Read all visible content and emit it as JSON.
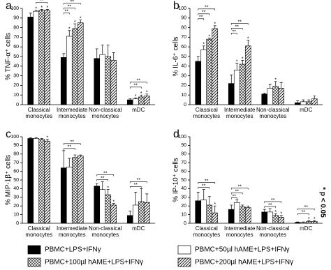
{
  "legend": [
    {
      "name": "PBMC+LPS+IFNγ",
      "pattern": "solid"
    },
    {
      "name": "PBMC+50µl hAME+LPS+IFNγ",
      "pattern": "white"
    },
    {
      "name": "PBMC+100µl hAME+LPS+IFNγ",
      "pattern": "cross"
    },
    {
      "name": "PBMC+200µl hAME+LPS+IFNγ",
      "pattern": "diag"
    }
  ],
  "note": "* p < 0.05",
  "chart_data": [
    {
      "type": "bar",
      "panel": "a",
      "y_label": "% TNF-α⁺ cells",
      "categories": [
        "Classical monocytes",
        "Intermediate monocytes",
        "Non-classical monocytes",
        "mDC"
      ],
      "ylim": [
        0,
        100
      ],
      "yticks": [
        0,
        10,
        20,
        30,
        40,
        50,
        60,
        70,
        80,
        90,
        100
      ],
      "series": [
        {
          "pattern": "solid",
          "values": [
            91,
            49,
            48,
            5
          ],
          "errors": [
            4,
            4,
            10,
            1
          ],
          "stars": [
            null,
            null,
            null,
            null
          ]
        },
        {
          "pattern": "white",
          "values": [
            97,
            71,
            52,
            6
          ],
          "errors": [
            1,
            6,
            10,
            1
          ],
          "stars": [
            "*",
            "*",
            null,
            "*"
          ]
        },
        {
          "pattern": "cross",
          "values": [
            98,
            79,
            50,
            8
          ],
          "errors": [
            1,
            5,
            12,
            2
          ],
          "stars": [
            "*",
            "*",
            null,
            "*"
          ]
        },
        {
          "pattern": "diag",
          "values": [
            98,
            85,
            46,
            9
          ],
          "errors": [
            1,
            3,
            8,
            2
          ],
          "stars": [
            "*",
            "*",
            null,
            "*"
          ]
        }
      ],
      "brackets": [
        {
          "category": 0,
          "from": 1,
          "to": 3,
          "label": "**"
        },
        {
          "category": 1,
          "from": 0,
          "to": 1,
          "label": "**"
        },
        {
          "category": 1,
          "from": 0,
          "to": 2,
          "label": "**"
        },
        {
          "category": 1,
          "from": 0,
          "to": 3,
          "label": "**"
        },
        {
          "category": 3,
          "from": 0,
          "to": 2,
          "label": "**"
        },
        {
          "category": 3,
          "from": 0,
          "to": 3,
          "label": "**"
        }
      ]
    },
    {
      "type": "bar",
      "panel": "b",
      "y_label": "% IL-6⁺ cells",
      "categories": [
        "Classical monocytes",
        "Intermediate monocytes",
        "Non-classical monocytes",
        "mDC"
      ],
      "ylim": [
        0,
        100
      ],
      "yticks": [
        0,
        10,
        20,
        30,
        40,
        50,
        60,
        70,
        80,
        90,
        100
      ],
      "series": [
        {
          "pattern": "solid",
          "values": [
            45,
            22,
            11,
            2
          ],
          "errors": [
            5,
            9,
            1,
            2
          ],
          "stars": [
            null,
            null,
            null,
            null
          ]
        },
        {
          "pattern": "white",
          "values": [
            57,
            36,
            17,
            3
          ],
          "errors": [
            4,
            7,
            4,
            2
          ],
          "stars": [
            "*",
            "*",
            null,
            null
          ]
        },
        {
          "pattern": "cross",
          "values": [
            68,
            42,
            19,
            3
          ],
          "errors": [
            1,
            4,
            5,
            2
          ],
          "stars": [
            "*",
            "*",
            "*",
            null
          ]
        },
        {
          "pattern": "diag",
          "values": [
            79,
            61,
            17,
            6
          ],
          "errors": [
            3,
            6,
            6,
            3
          ],
          "stars": [
            "*",
            "*",
            null,
            null
          ]
        }
      ],
      "brackets": [
        {
          "category": 0,
          "from": 0,
          "to": 1,
          "label": "**"
        },
        {
          "category": 0,
          "from": 0,
          "to": 2,
          "label": "**"
        },
        {
          "category": 0,
          "from": 0,
          "to": 3,
          "label": "**"
        },
        {
          "category": 1,
          "from": 0,
          "to": 1,
          "label": "**"
        },
        {
          "category": 1,
          "from": 0,
          "to": 2,
          "label": "**"
        },
        {
          "category": 1,
          "from": 0,
          "to": 3,
          "label": "**"
        }
      ]
    },
    {
      "type": "bar",
      "panel": "c",
      "y_label": "% MIP-1β⁺ cells",
      "categories": [
        "Classical monocytes",
        "Intermediate monocytes",
        "Non-classical monocytes",
        "mDC"
      ],
      "ylim": [
        0,
        100
      ],
      "yticks": [
        0,
        10,
        20,
        30,
        40,
        50,
        60,
        70,
        80,
        90,
        100
      ],
      "series": [
        {
          "pattern": "solid",
          "values": [
            98,
            64,
            43,
            9
          ],
          "errors": [
            1,
            20,
            3,
            5
          ],
          "stars": [
            null,
            null,
            null,
            null
          ]
        },
        {
          "pattern": "white",
          "values": [
            98,
            65,
            39,
            21
          ],
          "errors": [
            1,
            10,
            9,
            15
          ],
          "stars": [
            null,
            null,
            null,
            null
          ]
        },
        {
          "pattern": "cross",
          "values": [
            97,
            76,
            33,
            25
          ],
          "errors": [
            1,
            3,
            6,
            15
          ],
          "stars": [
            null,
            null,
            "*",
            null
          ]
        },
        {
          "pattern": "diag",
          "values": [
            95,
            78,
            21,
            24
          ],
          "errors": [
            2,
            1,
            2,
            10
          ],
          "stars": [
            "*",
            null,
            "*",
            null
          ]
        }
      ],
      "brackets": [
        {
          "category": 1,
          "from": 0,
          "to": 2,
          "label": "**"
        },
        {
          "category": 1,
          "from": 0,
          "to": 3,
          "label": "**"
        },
        {
          "category": 2,
          "from": 0,
          "to": 2,
          "label": "**"
        },
        {
          "category": 2,
          "from": 0,
          "to": 3,
          "label": "**"
        },
        {
          "category": 3,
          "from": 0,
          "to": 2,
          "label": "**"
        },
        {
          "category": 3,
          "from": 0,
          "to": 3,
          "label": "**"
        }
      ]
    },
    {
      "type": "bar",
      "panel": "d",
      "y_label": "% IP-10⁺ cells",
      "categories": [
        "Classical monocytes",
        "Intermediate monocytes",
        "Non-classical monocytes",
        "mDC"
      ],
      "ylim": [
        0,
        100
      ],
      "yticks": [
        0,
        10,
        20,
        30,
        40,
        50,
        60,
        70,
        80,
        90,
        100
      ],
      "series": [
        {
          "pattern": "solid",
          "values": [
            26,
            16,
            13,
            1
          ],
          "errors": [
            10,
            5,
            3,
            0.5
          ],
          "stars": [
            null,
            null,
            null,
            null
          ]
        },
        {
          "pattern": "white",
          "values": [
            27,
            24,
            13,
            1
          ],
          "errors": [
            12,
            3,
            4,
            0.5
          ],
          "stars": [
            null,
            null,
            null,
            null
          ]
        },
        {
          "pattern": "cross",
          "values": [
            21,
            19,
            9,
            2
          ],
          "errors": [
            10,
            2,
            2,
            1
          ],
          "stars": [
            null,
            null,
            "*",
            "*"
          ]
        },
        {
          "pattern": "diag",
          "values": [
            12,
            18,
            7,
            2
          ],
          "errors": [
            8,
            2,
            2,
            1
          ],
          "stars": [
            "*",
            null,
            "*",
            "*"
          ]
        }
      ],
      "brackets": [
        {
          "category": 0,
          "from": 0,
          "to": 2,
          "label": "**"
        },
        {
          "category": 0,
          "from": 0,
          "to": 3,
          "label": "**"
        },
        {
          "category": 1,
          "from": 0,
          "to": 1,
          "label": "**"
        },
        {
          "category": 1,
          "from": 0,
          "to": 2,
          "label": "**"
        },
        {
          "category": 1,
          "from": 0,
          "to": 3,
          "label": "**"
        },
        {
          "category": 2,
          "from": 0,
          "to": 2,
          "label": "**"
        },
        {
          "category": 2,
          "from": 0,
          "to": 3,
          "label": "**"
        },
        {
          "category": 3,
          "from": 0,
          "to": 2,
          "label": "**"
        },
        {
          "category": 3,
          "from": 0,
          "to": 3,
          "label": "**"
        }
      ]
    }
  ]
}
